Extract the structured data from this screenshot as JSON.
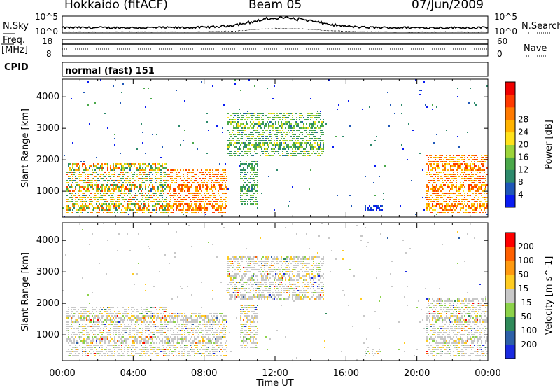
{
  "header": {
    "station": "Hokkaido (fitACF)",
    "beam": "Beam 05",
    "date": "07/Jun/2009"
  },
  "top_panels": {
    "nsky_label": "N.Sky",
    "nsky_ticks": [
      "10^5",
      "10^0"
    ],
    "nsearch_label": "N.Search",
    "freq_label_1": "Freq.",
    "freq_label_2": "[MHz]",
    "freq_ticks": [
      "18",
      "8"
    ],
    "nave_label": "Nave",
    "nave_ticks": [
      "60",
      "0"
    ],
    "cpid_label": "CPID",
    "cpid_value": "normal (fast) 151"
  },
  "chart_data": [
    {
      "type": "heatmap",
      "name": "power",
      "ylabel": "Slant Range [km]",
      "yticks": [
        1000,
        2000,
        3000,
        4000
      ],
      "ylim": [
        180,
        4560
      ],
      "xlim": [
        0,
        24
      ],
      "colorbar_label": "Power [dB]",
      "colorbar_ticks": [
        "4",
        "8",
        "12",
        "16",
        "20",
        "24",
        "28"
      ],
      "colorbar_colors": [
        "#0a1cf2",
        "#1f57b8",
        "#2d8a6c",
        "#4aa84a",
        "#9cd43a",
        "#ffe21a",
        "#ffb300",
        "#ff7a00",
        "#ff3a00",
        "#f00000"
      ],
      "description_blocks": [
        {
          "t0": 0.2,
          "t1": 5.9,
          "r0": 300,
          "r1": 1950,
          "c": [
            0.2,
            0.95
          ]
        },
        {
          "t0": 5.9,
          "t1": 9.3,
          "r0": 300,
          "r1": 1700,
          "c": [
            0.65,
            1.0
          ]
        },
        {
          "t0": 9.3,
          "t1": 14.7,
          "r0": 2100,
          "r1": 3500,
          "c": [
            0.2,
            0.6
          ]
        },
        {
          "t0": 10.0,
          "t1": 11.0,
          "r0": 600,
          "r1": 2000,
          "c": [
            0.2,
            0.5
          ]
        },
        {
          "t0": 20.5,
          "t1": 24.0,
          "r0": 300,
          "r1": 2200,
          "c": [
            0.6,
            1.0
          ]
        },
        {
          "t0": 17.0,
          "t1": 18.0,
          "r0": 400,
          "r1": 600,
          "c": [
            0.05,
            0.2
          ]
        }
      ]
    },
    {
      "type": "heatmap",
      "name": "velocity",
      "ylabel": "Slant Range [km]",
      "yticks": [
        1000,
        2000,
        3000,
        4000
      ],
      "ylim": [
        180,
        4560
      ],
      "xlim": [
        0,
        24
      ],
      "xticks": [
        "00:00",
        "04:00",
        "08:00",
        "12:00",
        "16:00",
        "20:00",
        "00:00"
      ],
      "xlabel": "Time UT",
      "colorbar_label": "Velocity [m s^-1]",
      "colorbar_ticks": [
        "200",
        "100",
        "50",
        "15",
        "-15",
        "-50",
        "-100",
        "-200"
      ],
      "colorbar_colors": [
        "#1a2ae0",
        "#2d60a8",
        "#2f8a5a",
        "#8cd24a",
        "#c8c8c8",
        "#ffcc22",
        "#ff9a10",
        "#ff6000",
        "#ff0000"
      ]
    }
  ]
}
